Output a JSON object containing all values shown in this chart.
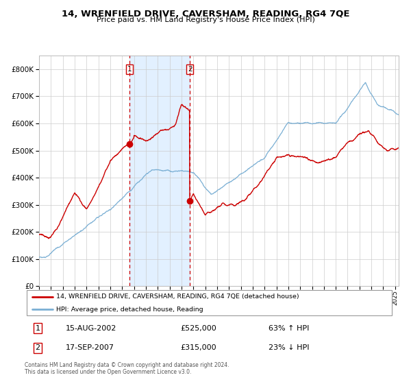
{
  "title": "14, WRENFIELD DRIVE, CAVERSHAM, READING, RG4 7QE",
  "subtitle": "Price paid vs. HM Land Registry's House Price Index (HPI)",
  "legend_line1": "14, WRENFIELD DRIVE, CAVERSHAM, READING, RG4 7QE (detached house)",
  "legend_line2": "HPI: Average price, detached house, Reading",
  "transaction1_date": "15-AUG-2002",
  "transaction1_price": 525000,
  "transaction1_hpi": "63% ↑ HPI",
  "transaction2_date": "17-SEP-2007",
  "transaction2_price": 315000,
  "transaction2_hpi": "23% ↓ HPI",
  "footer": "Contains HM Land Registry data © Crown copyright and database right 2024.\nThis data is licensed under the Open Government Licence v3.0.",
  "red_color": "#cc0000",
  "blue_color": "#7aafd4",
  "bg_shade": "#ddeeff",
  "ylim": [
    0,
    850000
  ],
  "xlim_start": 1995.0,
  "xlim_end": 2025.3,
  "t1": 2002.622,
  "t2": 2007.706
}
